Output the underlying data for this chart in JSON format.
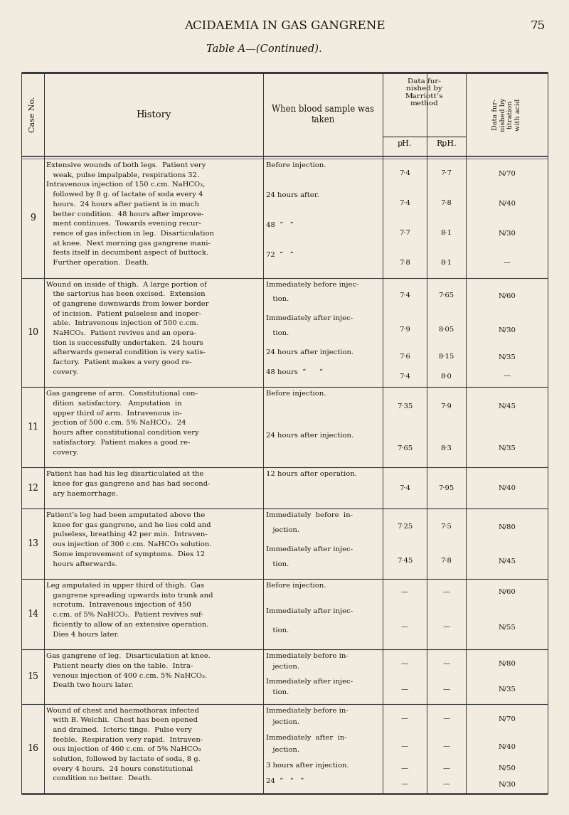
{
  "page_title": "ACIDAEMIA IN GAS GANGRENE",
  "page_number": "75",
  "table_title": "Table A—(Continued).",
  "bg_color": "#f2ece0",
  "text_color": "#1a1608",
  "rows": [
    {
      "case": "9",
      "history_lines": [
        "Extensive wounds of both legs.  Patient very",
        "   weak, pulse impalpable, respirations 32.",
        "Intravenous injection of 150 c.cm. NaHCO₃,",
        "   followed by 8 g. of lactate of soda every 4",
        "   hours.  24 hours after patient is in much",
        "   better condition.  48 hours after improve-",
        "   ment continues.  Towards evening recur-",
        "   rence of gas infection in leg.  Disarticulation",
        "   at knee.  Next morning gas gangrene mani-",
        "   fests itself in decumbent aspect of buttock.",
        "   Further operation.  Death."
      ],
      "samples": [
        {
          "when_lines": [
            "Before injection."
          ],
          "pH": "7·4",
          "RpH": "7·7",
          "acid": "N/70"
        },
        {
          "when_lines": [
            "24 hours after."
          ],
          "pH": "7·4",
          "RpH": "7·8",
          "acid": "N/40"
        },
        {
          "when_lines": [
            "48  “   “"
          ],
          "pH": "7·7",
          "RpH": "8·1",
          "acid": "N/30"
        },
        {
          "when_lines": [
            "72  “   “"
          ],
          "pH": "7·8",
          "RpH": "8·1",
          "acid": "—"
        }
      ]
    },
    {
      "case": "10",
      "history_lines": [
        "Wound on inside of thigh.  A large portion of",
        "   the sartorius has been excised.  Extension",
        "   of gangrene downwards from lower border",
        "   of incision.  Patient pulseless and inoper-",
        "   able.  Intravenous injection of 500 c.cm.",
        "   NaHCO₃.  Patient revives and an opera-",
        "   tion is successfully undertaken.  24 hours",
        "   afterwards general condition is very satis-",
        "   factory.  Patient makes a very good re-",
        "   covery."
      ],
      "samples": [
        {
          "when_lines": [
            "Immediately before injec-",
            "   tion."
          ],
          "pH": "7·4",
          "RpH": "7·65",
          "acid": "N/60"
        },
        {
          "when_lines": [
            "Immediately after injec-",
            "   tion."
          ],
          "pH": "7·9",
          "RpH": "8·05",
          "acid": "N/30"
        },
        {
          "when_lines": [
            "24 hours after injection."
          ],
          "pH": "7·6",
          "RpH": "8·15",
          "acid": "N/35"
        },
        {
          "when_lines": [
            "48 hours  “      “"
          ],
          "pH": "7·4",
          "RpH": "8·0",
          "acid": "—"
        }
      ]
    },
    {
      "case": "11",
      "history_lines": [
        "Gas gangrene of arm.  Constitutional con-",
        "   dition  satisfactory.   Amputation  in",
        "   upper third of arm.  Intravenous in-",
        "   jection of 500 c.cm. 5% NaHCO₃.  24",
        "   hours after constitutional condition very",
        "   satisfactory.  Patient makes a good re-",
        "   covery."
      ],
      "samples": [
        {
          "when_lines": [
            "Before injection."
          ],
          "pH": "7·35",
          "RpH": "7·9",
          "acid": "N/45"
        },
        {
          "when_lines": [
            "24 hours after injection."
          ],
          "pH": "7·65",
          "RpH": "8·3",
          "acid": "N/35"
        }
      ]
    },
    {
      "case": "12",
      "history_lines": [
        "Patient has had his leg disarticulated at the",
        "   knee for gas gangrene and has had second-",
        "   ary haemorrhage."
      ],
      "samples": [
        {
          "when_lines": [
            "12 hours after operation."
          ],
          "pH": "7·4",
          "RpH": "7·95",
          "acid": "N/40"
        }
      ]
    },
    {
      "case": "13",
      "history_lines": [
        "Patient’s leg had been amputated above the",
        "   knee for gas gangrene, and he lies cold and",
        "   pulseless, breathing 42 per min.  Intraven-",
        "   ous injection of 300 c.cm. NaHCO₃ solution.",
        "   Some improvement of symptoms.  Dies 12",
        "   hours afterwards."
      ],
      "samples": [
        {
          "when_lines": [
            "Immediately  before  in-",
            "   jection."
          ],
          "pH": "7·25",
          "RpH": "7·5",
          "acid": "N/80"
        },
        {
          "when_lines": [
            "Immediately after injec-",
            "   tion."
          ],
          "pH": "7·45",
          "RpH": "7·8",
          "acid": "N/45"
        }
      ]
    },
    {
      "case": "14",
      "history_lines": [
        "Leg amputated in upper third of thigh.  Gas",
        "   gangrene spreading upwards into trunk and",
        "   scrotum.  Intravenous injection of 450",
        "   c.cm. of 5% NaHCO₃.  Patient revives suf-",
        "   ficiently to allow of an extensive operation.",
        "   Dies 4 hours later."
      ],
      "samples": [
        {
          "when_lines": [
            "Before injection."
          ],
          "pH": "—",
          "RpH": "—",
          "acid": "N/60"
        },
        {
          "when_lines": [
            "Immediately after injec-",
            "   tion."
          ],
          "pH": "—",
          "RpH": "—",
          "acid": "N/55"
        }
      ]
    },
    {
      "case": "15",
      "history_lines": [
        "Gas gangrene of leg.  Disarticulation at knee.",
        "   Patient nearly dies on the table.  Intra-",
        "   venous injection of 400 c.cm. 5% NaHCO₃.",
        "   Death two hours later."
      ],
      "samples": [
        {
          "when_lines": [
            "Immediately before in-",
            "   jection."
          ],
          "pH": "—",
          "RpH": "—",
          "acid": "N/80"
        },
        {
          "when_lines": [
            "Immediately after injec-",
            "   tion."
          ],
          "pH": "—",
          "RpH": "—",
          "acid": "N/35"
        }
      ]
    },
    {
      "case": "16",
      "history_lines": [
        "Wound of chest and haemothorax infected",
        "   with B. Welchii.  Chest has been opened",
        "   and drained.  Icteric tinge.  Pulse very",
        "   feeble.  Respiration very rapid.  Intraven-",
        "   ous injection of 460 c.cm. of 5% NaHCO₃",
        "   solution, followed by lactate of soda, 8 g.",
        "   every 4 hours.  24 hours constitutional",
        "   condition no better.  Death."
      ],
      "samples": [
        {
          "when_lines": [
            "Immediately before in-",
            "   jection."
          ],
          "pH": "—",
          "RpH": "—",
          "acid": "N/70"
        },
        {
          "when_lines": [
            "Immediately  after  in-",
            "   jection."
          ],
          "pH": "—",
          "RpH": "—",
          "acid": "N/40"
        },
        {
          "when_lines": [
            "3 hours after injection."
          ],
          "pH": "—",
          "RpH": "—",
          "acid": "N/50"
        },
        {
          "when_lines": [
            "24  “   “   “"
          ],
          "pH": "—",
          "RpH": "—",
          "acid": "N/30"
        }
      ]
    }
  ]
}
